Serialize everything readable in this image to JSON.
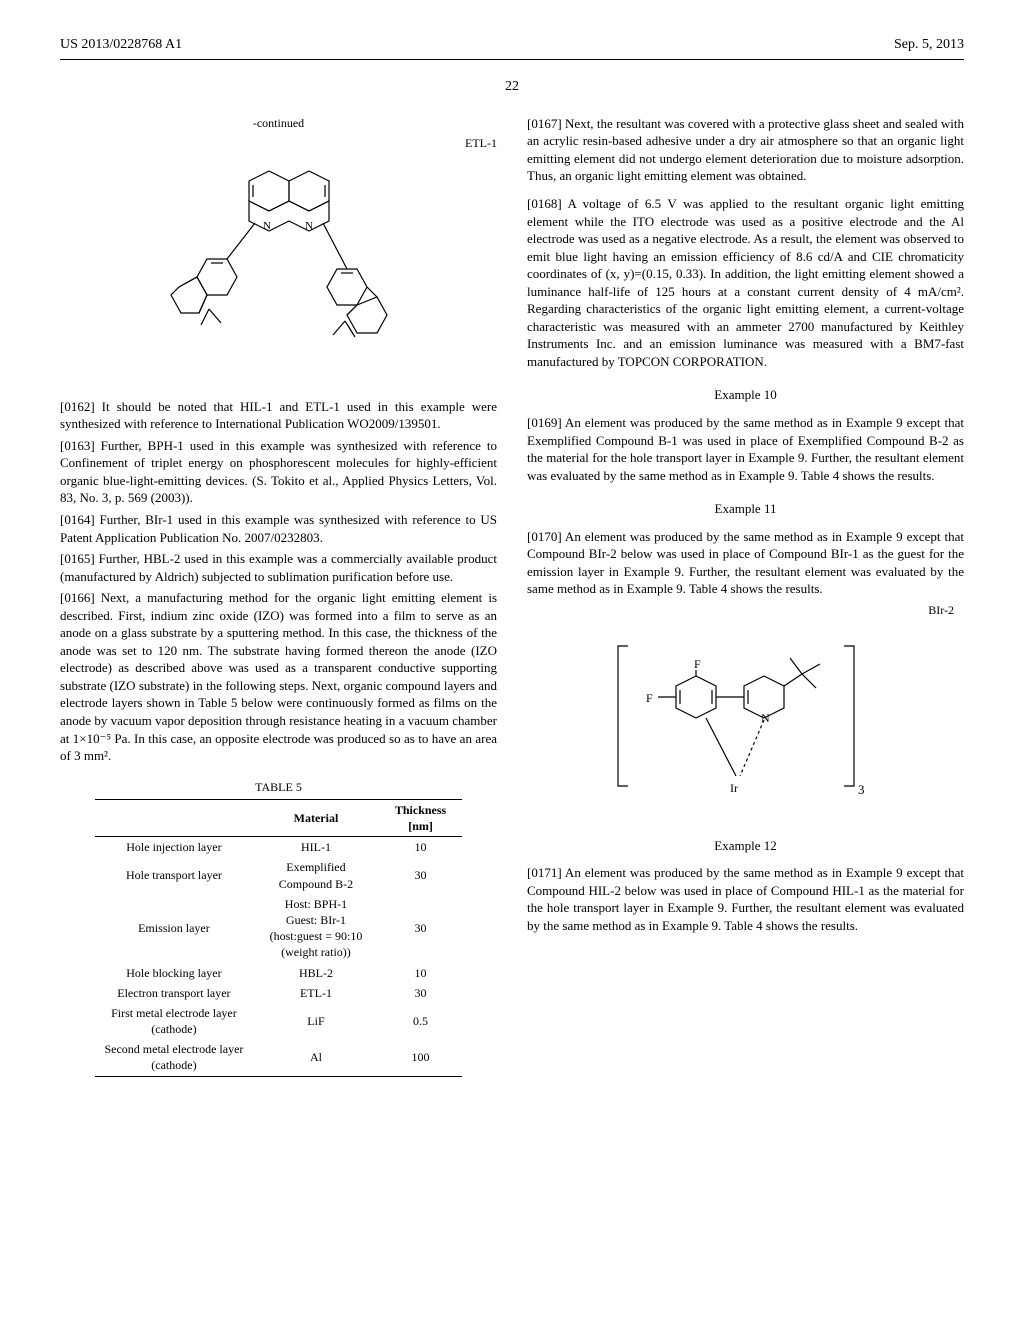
{
  "header": {
    "left": "US 2013/0228768 A1",
    "right": "Sep. 5, 2013"
  },
  "page_number": "22",
  "left": {
    "continued_label": "-continued",
    "etl1_label": "ETL-1",
    "p0162": "[0162]   It should be noted that HIL-1 and ETL-1 used in this example were synthesized with reference to International Publication WO2009/139501.",
    "p0163": "[0163]   Further, BPH-1 used in this example was synthesized with reference to Confinement of triplet energy on phosphorescent molecules for highly-efficient organic blue-light-emitting devices. (S. Tokito et al., Applied Physics Letters, Vol. 83, No. 3, p. 569 (2003)).",
    "p0164": "[0164]   Further, BIr-1 used in this example was synthesized with reference to US Patent Application Publication No. 2007/0232803.",
    "p0165": "[0165]   Further, HBL-2 used in this example was a commercially available product (manufactured by Aldrich) subjected to sublimation purification before use.",
    "p0166": "[0166]   Next, a manufacturing method for the organic light emitting element is described. First, indium zinc oxide (IZO) was formed into a film to serve as an anode on a glass substrate by a sputtering method. In this case, the thickness of the anode was set to 120 nm. The substrate having formed thereon the anode (IZO electrode) as described above was used as a transparent conductive supporting substrate (IZO substrate) in the following steps. Next, organic compound layers and electrode layers shown in Table 5 below were continuously formed as films on the anode by vacuum vapor deposition through resistance heating in a vacuum chamber at 1×10⁻⁵ Pa. In this case, an opposite electrode was produced so as to have an area of 3 mm².",
    "table5": {
      "caption": "TABLE 5",
      "columns": [
        "",
        "Material",
        "Thickness [nm]"
      ],
      "rows": [
        [
          "Hole injection layer",
          "HIL-1",
          "10"
        ],
        [
          "Hole transport layer",
          "Exemplified Compound B-2",
          "30"
        ],
        [
          "Emission layer",
          "Host: BPH-1\nGuest: BIr-1\n(host:guest = 90:10\n(weight ratio))",
          "30"
        ],
        [
          "Hole blocking layer",
          "HBL-2",
          "10"
        ],
        [
          "Electron transport layer",
          "ETL-1",
          "30"
        ],
        [
          "First metal electrode layer (cathode)",
          "LiF",
          "0.5"
        ],
        [
          "Second metal electrode layer (cathode)",
          "Al",
          "100"
        ]
      ]
    }
  },
  "right": {
    "p0167": "[0167]   Next, the resultant was covered with a protective glass sheet and sealed with an acrylic resin-based adhesive under a dry air atmosphere so that an organic light emitting element did not undergo element deterioration due to moisture adsorption. Thus, an organic light emitting element was obtained.",
    "p0168": "[0168]   A voltage of 6.5 V was applied to the resultant organic light emitting element while the ITO electrode was used as a positive electrode and the Al electrode was used as a negative electrode. As a result, the element was observed to emit blue light having an emission efficiency of 8.6 cd/A and CIE chromaticity coordinates of (x, y)=(0.15, 0.33). In addition, the light emitting element showed a luminance half-life of 125 hours at a constant current density of 4 mA/cm². Regarding characteristics of the organic light emitting element, a current-voltage characteristic was measured with an ammeter 2700 manufactured by Keithley Instruments Inc. and an emission luminance was measured with a BM7-fast manufactured by TOPCON CORPORATION.",
    "ex10_heading": "Example 10",
    "p0169": "[0169]   An element was produced by the same method as in Example 9 except that Exemplified Compound B-1 was used in place of Exemplified Compound B-2 as the material for the hole transport layer in Example 9. Further, the resultant element was evaluated by the same method as in Example 9. Table 4 shows the results.",
    "ex11_heading": "Example 11",
    "p0170": "[0170]   An element was produced by the same method as in Example 9 except that Compound BIr-2 below was used in place of Compound BIr-1 as the guest for the emission layer in Example 9. Further, the resultant element was evaluated by the same method as in Example 9. Table 4 shows the results.",
    "bir2_label": "BIr-2",
    "bir2_f1": "F",
    "bir2_f2": "F",
    "bir2_n": "N",
    "bir2_ir": "Ir",
    "bir2_sub": "3",
    "ex12_heading": "Example 12",
    "p0171": "[0171]   An element was produced by the same method as in Example 9 except that Compound HIL-2 below was used in place of Compound HIL-1 as the material for the hole transport layer in Example 9. Further, the resultant element was evaluated by the same method as in Example 9. Table 4 shows the results."
  }
}
